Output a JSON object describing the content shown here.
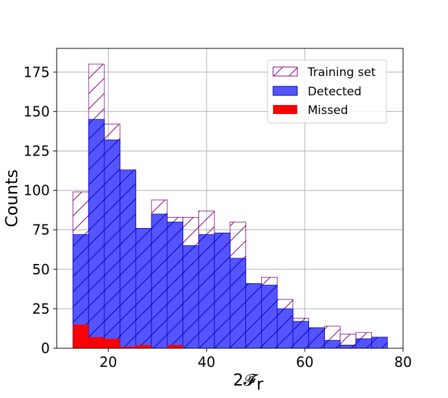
{
  "chart_data": {
    "type": "histogram",
    "bin_edges": [
      12.8,
      16.0,
      19.2,
      22.4,
      25.6,
      28.8,
      32.0,
      35.2,
      38.4,
      41.6,
      44.8,
      48.0,
      51.2,
      54.4,
      57.6,
      60.8,
      64.0,
      67.2,
      70.4,
      73.6,
      76.8
    ],
    "series": [
      {
        "name": "Training set",
        "style": "hatched-outline",
        "color": "#800080",
        "values": [
          99,
          180,
          142,
          113,
          76,
          94,
          83,
          83,
          87,
          73,
          80,
          41,
          45,
          31,
          19,
          13,
          14,
          9,
          10,
          7
        ]
      },
      {
        "name": "Detected",
        "style": "filled",
        "color": "#5555ff",
        "values": [
          72,
          145,
          132,
          113,
          76,
          85,
          80,
          65,
          72,
          73,
          57,
          41,
          40,
          25,
          17,
          13,
          5,
          2,
          6,
          7
        ]
      },
      {
        "name": "Missed",
        "style": "filled",
        "color": "#ff0000",
        "values": [
          15,
          7,
          6,
          1,
          2,
          0,
          2,
          0,
          0,
          0,
          0,
          0,
          0,
          0,
          0,
          0,
          0,
          0,
          0,
          0
        ]
      }
    ],
    "xlabel": "2𝓕̄",
    "xlabel_sub": "r",
    "ylabel": "Counts",
    "xlim": [
      9.5,
      80
    ],
    "ylim": [
      0,
      190
    ],
    "xticks": [
      20,
      40,
      60,
      80
    ],
    "yticks": [
      0,
      25,
      50,
      75,
      100,
      125,
      150,
      175
    ],
    "grid": true,
    "legend_position": "upper-right"
  }
}
